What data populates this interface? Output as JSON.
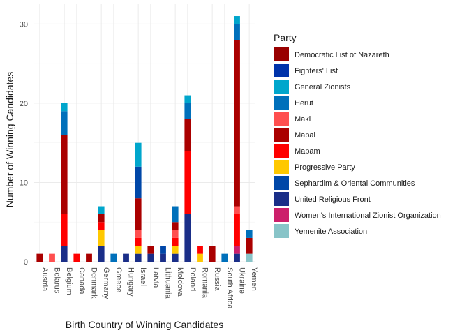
{
  "chart_data": {
    "type": "bar",
    "stacked": true,
    "xlabel": "Birth Country of Winning Candidates",
    "ylabel": "Number of Winning Candidates",
    "ylim": [
      0,
      32.5
    ],
    "yticks": [
      0,
      10,
      20,
      30
    ],
    "grid": true,
    "legend_title": "Party",
    "legend_position": "right",
    "categories": [
      "Austria",
      "Belarus",
      "Belgium",
      "Canada",
      "Denmark",
      "Germany",
      "Greece",
      "Hungary",
      "Israel",
      "Latvia",
      "Lithuania",
      "Moldova",
      "Poland",
      "Romania",
      "Russia",
      "South Africa",
      "Ukraine",
      "Yemen"
    ],
    "series": [
      {
        "name": "Democratic List of Nazareth",
        "color": "#990000",
        "values": [
          0,
          0,
          0,
          0,
          0,
          0,
          0,
          0,
          0,
          0,
          0,
          0,
          0,
          0,
          0,
          0,
          0,
          0
        ]
      },
      {
        "name": "Fighters' List",
        "color": "#0033aa",
        "values": [
          0,
          0,
          0,
          0,
          0,
          0,
          0,
          0,
          0,
          0,
          0,
          0,
          0,
          0,
          0,
          0,
          0,
          0
        ]
      },
      {
        "name": "General Zionists",
        "color": "#00a6cc",
        "values": [
          0,
          0,
          1,
          0,
          0,
          1,
          0,
          0,
          3,
          0,
          0,
          0,
          1,
          0,
          0,
          0,
          1,
          0
        ]
      },
      {
        "name": "Herut",
        "color": "#0070bb",
        "values": [
          0,
          0,
          3,
          0,
          0,
          0,
          1,
          0,
          0,
          0,
          0,
          2,
          2,
          0,
          0,
          1,
          2,
          1
        ]
      },
      {
        "name": "Maki",
        "color": "#ff4f4f",
        "values": [
          0,
          1,
          0,
          0,
          0,
          0,
          0,
          0,
          1,
          0,
          0,
          1,
          0,
          0,
          0,
          0,
          1,
          0
        ]
      },
      {
        "name": "Mapai",
        "color": "#aa0000",
        "values": [
          1,
          0,
          10,
          0,
          1,
          1,
          0,
          0,
          4,
          1,
          0,
          1,
          4,
          0,
          2,
          0,
          21,
          2
        ]
      },
      {
        "name": "Mapam",
        "color": "#ff0000",
        "values": [
          0,
          0,
          4,
          1,
          0,
          1,
          0,
          0,
          1,
          0,
          0,
          1,
          8,
          1,
          0,
          0,
          4,
          0
        ]
      },
      {
        "name": "Progressive Party",
        "color": "#ffc800",
        "values": [
          0,
          0,
          0,
          0,
          0,
          2,
          0,
          0,
          1,
          0,
          0,
          1,
          0,
          1,
          0,
          0,
          0,
          0
        ]
      },
      {
        "name": "Sephardim & Oriental Communities",
        "color": "#0047a8",
        "values": [
          0,
          0,
          0,
          0,
          0,
          0,
          0,
          0,
          4,
          0,
          1,
          0,
          0,
          0,
          0,
          0,
          0,
          0
        ]
      },
      {
        "name": "United Religious Front",
        "color": "#1a2e88",
        "values": [
          0,
          0,
          2,
          0,
          0,
          2,
          0,
          1,
          1,
          1,
          1,
          1,
          6,
          0,
          0,
          0,
          1,
          0
        ]
      },
      {
        "name": "Women's International Zionist Organization",
        "color": "#cc1f6b",
        "values": [
          0,
          0,
          0,
          0,
          0,
          0,
          0,
          0,
          0,
          0,
          0,
          0,
          0,
          0,
          0,
          0,
          1,
          0
        ]
      },
      {
        "name": "Yemenite Association",
        "color": "#88c4c8",
        "values": [
          0,
          0,
          0,
          0,
          0,
          0,
          0,
          0,
          0,
          0,
          0,
          0,
          0,
          0,
          0,
          0,
          0,
          1
        ]
      }
    ],
    "stack_order": [
      "United Religious Front",
      "Women's International Zionist Organization",
      "Yemenite Association",
      "Progressive Party",
      "Mapam",
      "Maki",
      "Mapai",
      "Sephardim & Oriental Communities",
      "Herut",
      "General Zionists",
      "Fighters' List",
      "Democratic List of Nazareth"
    ]
  }
}
